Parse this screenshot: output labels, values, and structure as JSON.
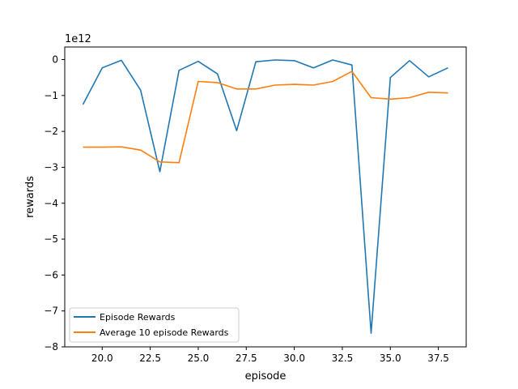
{
  "chart_data": {
    "type": "line",
    "title": "",
    "xlabel": "episode",
    "ylabel": "rewards",
    "y_offset_label": "1e12",
    "xlim": [
      18.05,
      38.95
    ],
    "ylim": [
      -8,
      0.35
    ],
    "x_ticks": [
      20,
      22.5,
      25,
      27.5,
      30,
      32.5,
      35,
      37.5
    ],
    "x_tick_labels": [
      "20.0",
      "22.5",
      "25.0",
      "27.5",
      "30.0",
      "32.5",
      "35.0",
      "37.5"
    ],
    "y_ticks": [
      0,
      -1,
      -2,
      -3,
      -4,
      -5,
      -6,
      -7,
      -8
    ],
    "y_tick_labels": [
      "0",
      "−1",
      "−2",
      "−3",
      "−4",
      "−5",
      "−6",
      "−7",
      "−8"
    ],
    "grid": false,
    "legend_position": "lower-left",
    "x": [
      19,
      20,
      21,
      22,
      23,
      24,
      25,
      26,
      27,
      28,
      29,
      30,
      31,
      32,
      33,
      34,
      35,
      36,
      37,
      38
    ],
    "series": [
      {
        "name": "Episode Rewards",
        "color": "#1f77b4",
        "values": [
          -1.25,
          -0.23,
          -0.02,
          -0.85,
          -3.12,
          -0.3,
          -0.05,
          -0.4,
          -1.98,
          -0.06,
          -0.01,
          -0.03,
          -0.23,
          -0.01,
          -0.15,
          -7.62,
          -0.5,
          -0.03,
          -0.48,
          -0.23
        ]
      },
      {
        "name": "Average 10 episode Rewards",
        "color": "#ff7f0e",
        "values": [
          -2.44,
          -2.44,
          -2.43,
          -2.52,
          -2.85,
          -2.87,
          -0.61,
          -0.64,
          -0.82,
          -0.82,
          -0.71,
          -0.69,
          -0.71,
          -0.61,
          -0.33,
          -1.06,
          -1.1,
          -1.06,
          -0.91,
          -0.93
        ]
      }
    ]
  }
}
